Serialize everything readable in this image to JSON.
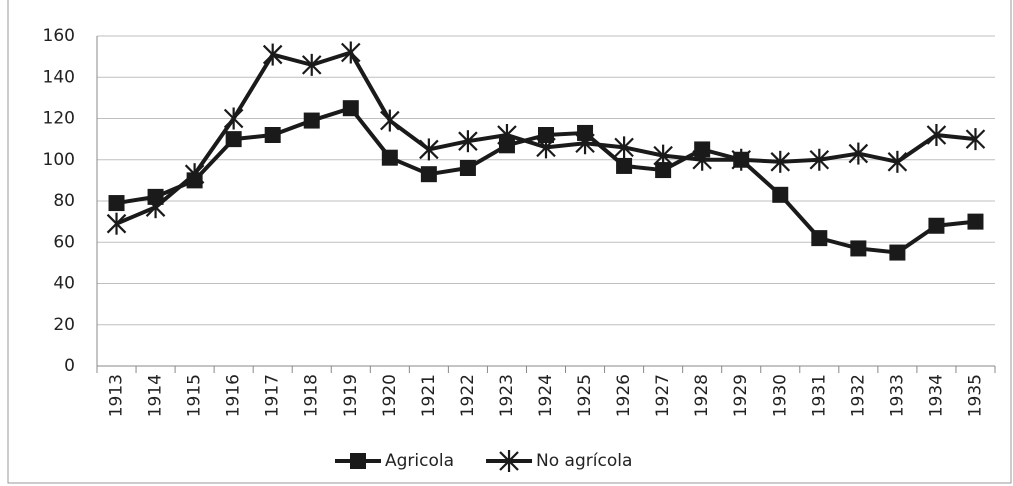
{
  "chart_data": {
    "type": "line",
    "categories": [
      "1913",
      "1914",
      "1915",
      "1916",
      "1917",
      "1918",
      "1919",
      "1920",
      "1921",
      "1922",
      "1923",
      "1924",
      "1925",
      "1926",
      "1927",
      "1928",
      "1929",
      "1930",
      "1931",
      "1932",
      "1933",
      "1934",
      "1935"
    ],
    "series": [
      {
        "name": "Agricola",
        "color": "#1a1a1a",
        "marker": "square",
        "values": [
          79,
          82,
          90,
          110,
          112,
          119,
          125,
          101,
          93,
          96,
          107,
          112,
          113,
          97,
          95,
          105,
          100,
          83,
          62,
          57,
          55,
          68,
          70
        ]
      },
      {
        "name": "No agrícola",
        "color": "#1a1a1a",
        "marker": "star",
        "values": [
          69,
          77,
          93,
          120,
          151,
          146,
          152,
          119,
          105,
          109,
          112,
          106,
          108,
          106,
          102,
          100,
          100,
          99,
          100,
          103,
          99,
          112,
          110
        ]
      }
    ],
    "ylim": [
      0,
      160
    ],
    "yticks": [
      0,
      20,
      40,
      60,
      80,
      100,
      120,
      140,
      160
    ],
    "grid": true,
    "legend": "bottom"
  }
}
